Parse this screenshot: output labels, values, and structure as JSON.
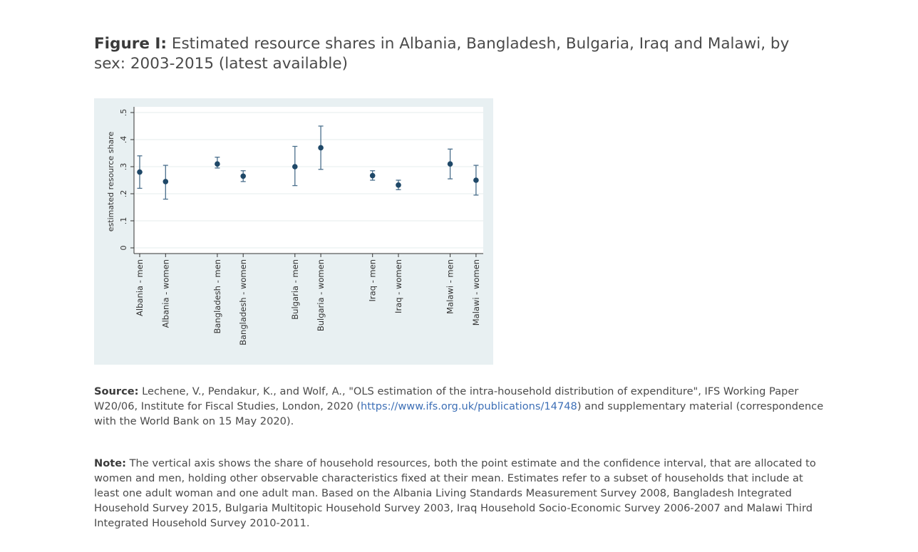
{
  "figure": {
    "label": "Figure I:",
    "title": "Estimated resource shares in Albania, Bangladesh, Bulgaria, Iraq and Malawi, by sex: 2003-2015 (latest available)"
  },
  "chart_data": {
    "type": "scatter",
    "ylabel": "estimated resource share",
    "xlabel": "",
    "ylim": [
      0,
      0.5
    ],
    "yticks": [
      {
        "value": 0,
        "label": "0"
      },
      {
        "value": 0.1,
        "label": ".1"
      },
      {
        "value": 0.2,
        "label": ".2"
      },
      {
        "value": 0.3,
        "label": ".3"
      },
      {
        "value": 0.4,
        "label": ".4"
      },
      {
        "value": 0.5,
        "label": ".5"
      }
    ],
    "grid": true,
    "points": [
      {
        "label": "Albania - men",
        "slot": 1,
        "value": 0.28,
        "ci": [
          0.22,
          0.34
        ]
      },
      {
        "label": "Albania - women",
        "slot": 2,
        "value": 0.245,
        "ci": [
          0.18,
          0.305
        ]
      },
      {
        "label": "Bangladesh - men",
        "slot": 4,
        "value": 0.31,
        "ci": [
          0.295,
          0.335
        ]
      },
      {
        "label": "Bangladesh - women",
        "slot": 5,
        "value": 0.265,
        "ci": [
          0.245,
          0.285
        ]
      },
      {
        "label": "Bulgaria - men",
        "slot": 7,
        "value": 0.3,
        "ci": [
          0.23,
          0.375
        ]
      },
      {
        "label": "Bulgaria - women",
        "slot": 8,
        "value": 0.37,
        "ci": [
          0.29,
          0.45
        ]
      },
      {
        "label": "Iraq - men",
        "slot": 10,
        "value": 0.267,
        "ci": [
          0.25,
          0.285
        ]
      },
      {
        "label": "Iraq - women",
        "slot": 11,
        "value": 0.232,
        "ci": [
          0.215,
          0.25
        ]
      },
      {
        "label": "Malawi - men",
        "slot": 13,
        "value": 0.31,
        "ci": [
          0.255,
          0.365
        ]
      },
      {
        "label": "Malawi - women",
        "slot": 14,
        "value": 0.25,
        "ci": [
          0.195,
          0.305
        ]
      }
    ],
    "colors": {
      "background": "#e8f0f2",
      "plot_area": "#ffffff",
      "marker": "#1f4868",
      "ci_line": "#4a6f8c",
      "grid": "#e6ecee",
      "axis": "#333333"
    }
  },
  "source": {
    "label": "Source:",
    "text_before": " Lechene, V., Pendakur, K., and Wolf, A., \"OLS estimation of the intra-household distribution of expenditure\", IFS Working Paper W20/06, Institute for Fiscal Studies, London, 2020 (",
    "link": "https://www.ifs.org.uk/publications/14748",
    "text_after": ") and supplementary material (correspondence with the World Bank on 15 May 2020)."
  },
  "note": {
    "label": "Note:",
    "text": " The vertical axis shows the share of household resources, both the point estimate and the confidence interval, that are allocated to women and men, holding other observable characteristics fixed at their mean. Estimates refer to a subset of households that include at least one adult woman and one adult man. Based on the Albania Living Standards Measurement Survey 2008, Bangladesh Integrated Household Survey 2015, Bulgaria Multitopic Household Survey 2003, Iraq Household Socio-Economic Survey 2006-2007 and Malawi Third Integrated Household Survey 2010-2011."
  }
}
